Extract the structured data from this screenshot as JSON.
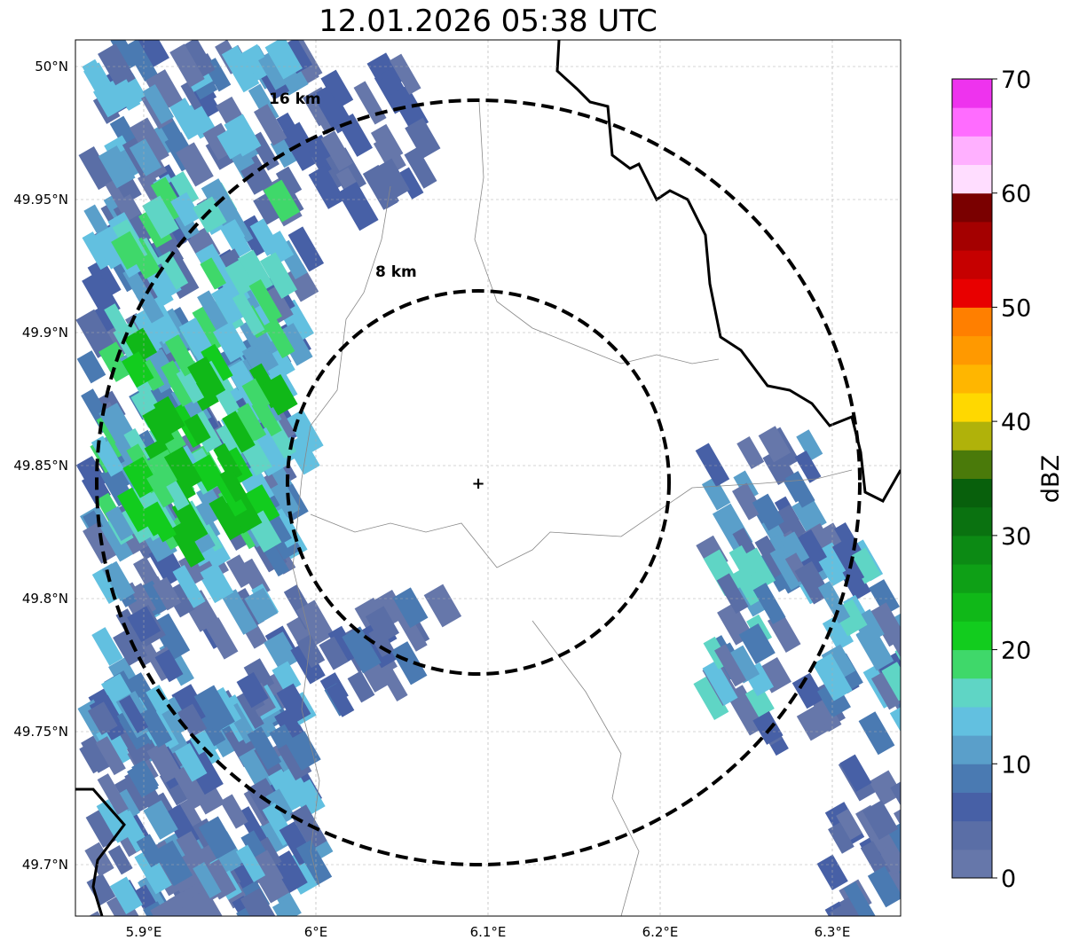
{
  "title": "12.01.2026 05:38 UTC",
  "map": {
    "lat_ticks": [
      {
        "value": 50.0,
        "label": "50°N"
      },
      {
        "value": 49.95,
        "label": "49.95°N"
      },
      {
        "value": 49.9,
        "label": "49.9°N"
      },
      {
        "value": 49.85,
        "label": "49.85°N"
      },
      {
        "value": 49.8,
        "label": "49.8°N"
      },
      {
        "value": 49.75,
        "label": "49.75°N"
      },
      {
        "value": 49.7,
        "label": "49.7°N"
      }
    ],
    "lon_ticks": [
      {
        "value": 5.9,
        "label": "5.9°E"
      },
      {
        "value": 6.0,
        "label": "6°E"
      },
      {
        "value": 6.1,
        "label": "6.1°E"
      },
      {
        "value": 6.2,
        "label": "6.2°E"
      },
      {
        "value": 6.3,
        "label": "6.3°E"
      }
    ],
    "range_rings": [
      {
        "km": 8,
        "label": "8 km"
      },
      {
        "km": 16,
        "label": "16 km"
      }
    ]
  },
  "colorbar": {
    "label": "dBZ",
    "ticks": [
      "0",
      "10",
      "20",
      "30",
      "40",
      "50",
      "60",
      "70"
    ],
    "colors": [
      "#6677aa",
      "#5a6ea6",
      "#4760a6",
      "#4a7ab2",
      "#5a9fca",
      "#62c0e0",
      "#5fd5c5",
      "#3fd86a",
      "#12cc1e",
      "#10b818",
      "#0ea016",
      "#0c8a14",
      "#0a7210",
      "#08600c",
      "#4a7a0a",
      "#b0b20a",
      "#ffd800",
      "#ffb600",
      "#ff9900",
      "#ff7f00",
      "#e80000",
      "#c60000",
      "#a40000",
      "#7a0000",
      "#ffddff",
      "#ffb0ff",
      "#ff6cff",
      "#ee33ee"
    ]
  }
}
